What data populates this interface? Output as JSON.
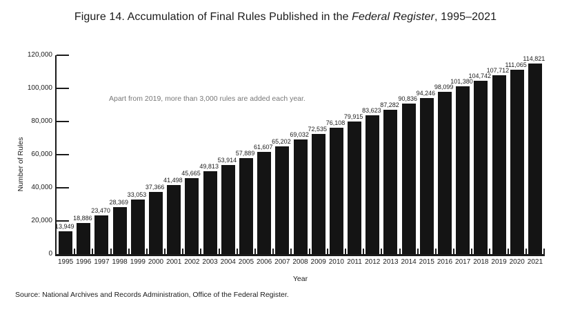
{
  "figure": {
    "title_prefix": "Figure 14. Accumulation of Final Rules Published in the ",
    "title_italic": "Federal Register",
    "title_suffix": ", 1995–2021",
    "source": "Source: National Archives and Records Administration, Office of the Federal Register."
  },
  "chart_data": {
    "type": "bar",
    "title": "Figure 14. Accumulation of Final Rules Published in the Federal Register, 1995–2021",
    "xlabel": "Year",
    "ylabel": "Number of Rules",
    "ylim": [
      0,
      120000
    ],
    "ytick_step": 20000,
    "ytick_labels": [
      "0",
      "20,000",
      "40,000",
      "60,000",
      "80,000",
      "100,000",
      "120,000"
    ],
    "grid": false,
    "legend_position": "none",
    "bar_color": "#141414",
    "annotation": "Apart from 2019, more than 3,000 rules are added each year.",
    "categories": [
      "1995",
      "1996",
      "1997",
      "1998",
      "1999",
      "2000",
      "2001",
      "2002",
      "2003",
      "2004",
      "2005",
      "2006",
      "2007",
      "2008",
      "2009",
      "2010",
      "2011",
      "2012",
      "2013",
      "2014",
      "2015",
      "2016",
      "2017",
      "2018",
      "2019",
      "2020",
      "2021"
    ],
    "values": [
      13949,
      18886,
      23470,
      28369,
      33053,
      37366,
      41498,
      45665,
      49813,
      53914,
      57889,
      61607,
      65202,
      69032,
      72535,
      76108,
      79915,
      83623,
      87282,
      90836,
      94246,
      98099,
      101380,
      104742,
      107712,
      111065,
      114821
    ],
    "value_labels": [
      "13,949",
      "18,886",
      "23,470",
      "28,369",
      "33,053",
      "37,366",
      "41,498",
      "45,665",
      "49,813",
      "53,914",
      "57,889",
      "61,607",
      "65,202",
      "69,032",
      "72,535",
      "76,108",
      "79,915",
      "83,623",
      "87,282",
      "90,836",
      "94,246",
      "98,099",
      "101,380",
      "104,742",
      "107,712",
      "111,065",
      "114,821"
    ]
  }
}
